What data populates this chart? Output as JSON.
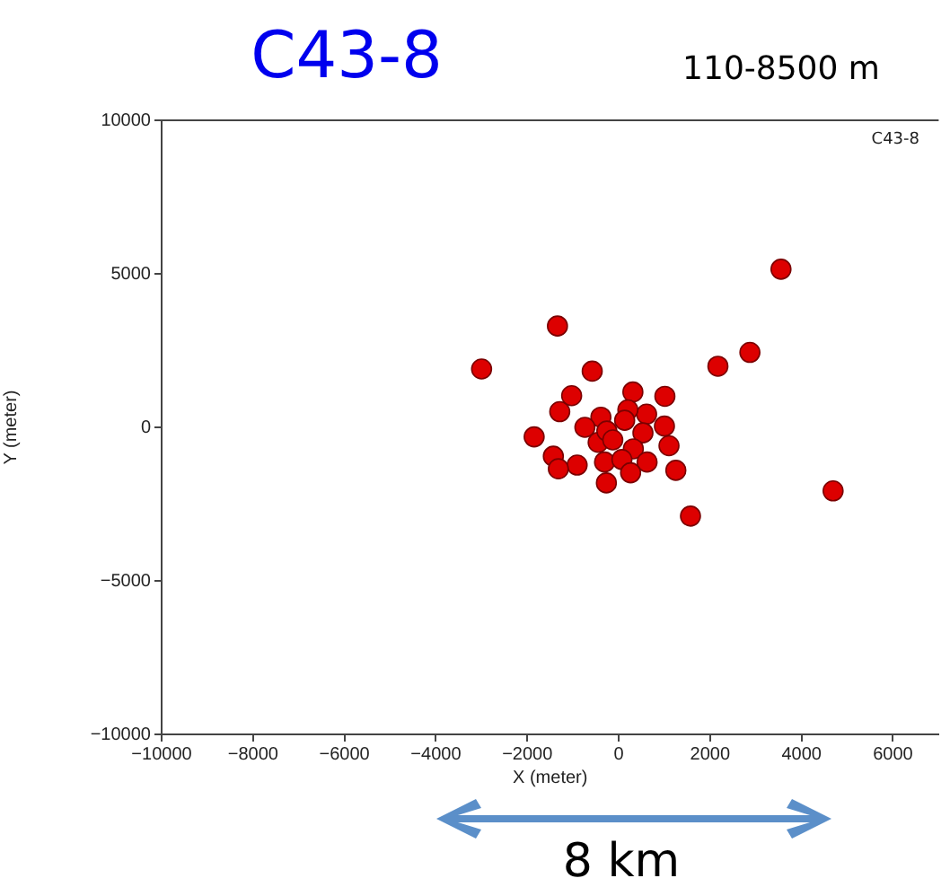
{
  "chart_data": {
    "type": "scatter",
    "title": "C43-8",
    "subtitle": "110-8500 m",
    "xlabel": "X (meter)",
    "ylabel": "Y (meter)",
    "annotations": [
      "C43-8",
      "8 km"
    ],
    "marker": "circle",
    "xlim": [
      -10000,
      7000
    ],
    "xticks": [
      -10000,
      -8000,
      -6000,
      -4000,
      -2000,
      0,
      2000,
      4000,
      6000
    ],
    "ylim": [
      -10000,
      10000
    ],
    "yticks": [
      -10000,
      -5000,
      0,
      5000,
      10000
    ],
    "series": [
      {
        "color": "#dd0000",
        "x": [
          3550,
          -1340,
          -3000,
          -580,
          2170,
          2870,
          310,
          1010,
          -1030,
          -1290,
          610,
          200,
          -390,
          -740,
          -70,
          260,
          1000,
          530,
          -1850,
          -450,
          0,
          1100,
          320,
          -1430,
          -910,
          -1320,
          -310,
          70,
          620,
          260,
          1250,
          -270,
          1570,
          4690,
          -260,
          130,
          -130
        ],
        "values": [
          5150,
          3300,
          1900,
          1830,
          1990,
          2440,
          1150,
          1010,
          1030,
          510,
          430,
          570,
          330,
          0,
          null,
          null,
          40,
          -180,
          -310,
          -490,
          null,
          -600,
          -700,
          -940,
          -1230,
          -1350,
          -1130,
          -1050,
          -1130,
          -1480,
          -1400,
          -1810,
          -2890,
          -2070,
          -120,
          230,
          -410
        ]
      }
    ]
  }
}
